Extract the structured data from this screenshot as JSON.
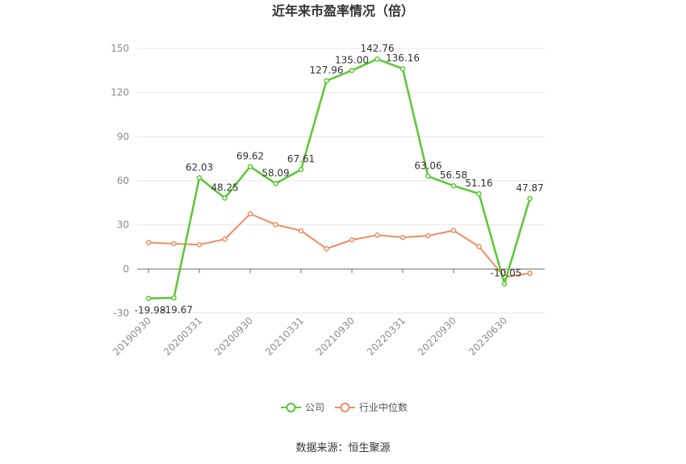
{
  "chart_data": {
    "type": "line",
    "title": "近年来市盈率情况（倍）",
    "ylim": [
      -30,
      150
    ],
    "yticks": [
      -30,
      0,
      30,
      60,
      90,
      120,
      150
    ],
    "x": [
      "20190930",
      "20191231",
      "20200331",
      "20200630",
      "20200930",
      "20201231",
      "20210331",
      "20210630",
      "20210930",
      "20211231",
      "20220331",
      "20220630",
      "20220930",
      "20221231",
      "20230630",
      "20231231"
    ],
    "xtick_labels": [
      "20190930",
      "20200331",
      "20200930",
      "20210331",
      "20210930",
      "20220331",
      "20220930",
      "20230630"
    ],
    "series": [
      {
        "name": "公司",
        "color": "#5ac832",
        "values": [
          -19.98,
          -19.67,
          62.03,
          48.25,
          69.62,
          58.09,
          67.61,
          127.96,
          135.0,
          142.76,
          136.16,
          63.06,
          56.58,
          51.16,
          -10.05,
          47.87
        ],
        "labels": [
          "-19.98",
          "-19.67",
          "62.03",
          "48.25",
          "69.62",
          "58.09",
          "67.61",
          "127.96",
          "135.00",
          "142.76",
          "136.16",
          "63.06",
          "56.58",
          "51.16",
          "-10.05",
          "47.87"
        ]
      },
      {
        "name": "行业中位数",
        "color": "#f08c64",
        "values": [
          18,
          17.2,
          16.5,
          20.3,
          37.5,
          30.2,
          26,
          13.8,
          19.8,
          23,
          21.5,
          22.6,
          26.2,
          15.2,
          -5.5,
          -3
        ]
      }
    ],
    "grid": true,
    "legend_position": "bottom"
  },
  "footer": {
    "source": "数据来源：恒生聚源"
  }
}
